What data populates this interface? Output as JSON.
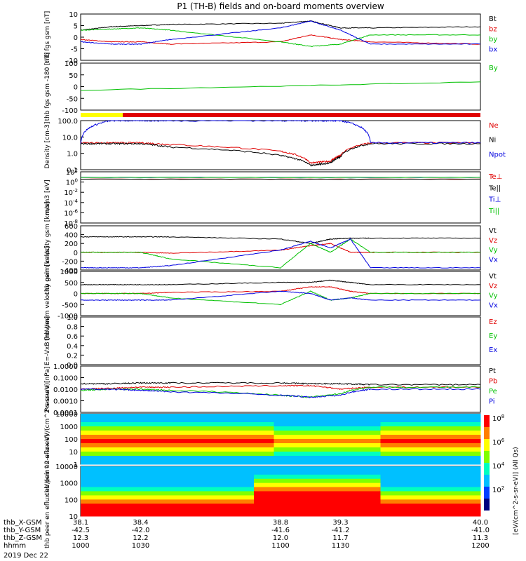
{
  "title": "P1 (TH-B) fields and on-board moments overview",
  "date": "2019 Dec 22",
  "colors": {
    "black": "#000000",
    "red": "#e00000",
    "green": "#00c000",
    "blue": "#0000e0",
    "yellow": "#ffff00"
  },
  "time_axis": {
    "rows": [
      {
        "label": "thb_X-GSM",
        "values": [
          "38.1",
          "38.4",
          "38.8",
          "39.3",
          "40.0"
        ]
      },
      {
        "label": "thb_Y-GSM",
        "values": [
          "-42.5",
          "-42.0",
          "-41.6",
          "-41.2",
          "-41.0"
        ]
      },
      {
        "label": "thb_Z-GSM",
        "values": [
          "12.3",
          "12.2",
          "12.0",
          "11.7",
          "11.3"
        ]
      },
      {
        "label": "hhmm",
        "values": [
          "1000",
          "1030",
          "1100",
          "1130",
          "1200"
        ]
      }
    ]
  },
  "chart_data": [
    {
      "id": "fgs",
      "type": "line",
      "ylabel": "thb fgs gsm [nT]",
      "ylim": [
        -10,
        10
      ],
      "ticks": [
        "10",
        "5",
        "0",
        "-5",
        "-10"
      ],
      "x": [
        1000,
        1015,
        1030,
        1045,
        1100,
        1115,
        1130,
        1145,
        1200
      ],
      "series": [
        {
          "name": "Bt",
          "color": "black",
          "values": [
            3,
            4.5,
            5,
            5.5,
            6,
            7,
            4,
            4,
            4.5
          ]
        },
        {
          "name": "bz",
          "color": "red",
          "values": [
            -1,
            -2,
            -2,
            -3,
            -2,
            1,
            -1,
            -2,
            -3
          ]
        },
        {
          "name": "by",
          "color": "green",
          "values": [
            3,
            3.5,
            4,
            3,
            -2,
            -4,
            -3,
            1,
            1
          ]
        },
        {
          "name": "bx",
          "color": "blue",
          "values": [
            -2,
            -3,
            -3,
            -1,
            4,
            7,
            3,
            -3,
            -3
          ]
        }
      ]
    },
    {
      "id": "fgs_rot",
      "type": "line",
      "ylabel": "thb fgs gsm -180 [nT]",
      "ylim": [
        -125,
        100
      ],
      "ticks": [
        "100",
        "50",
        "0",
        "-50",
        "-100"
      ],
      "x": [
        1000,
        1200
      ],
      "series": [
        {
          "name": "By",
          "color": "green",
          "values": [
            -30,
            10
          ]
        }
      ]
    },
    {
      "id": "density",
      "type": "line",
      "log": true,
      "ylabel": "Density [cm-3]",
      "ylim": [
        0.1,
        300
      ],
      "ticks": [
        "100.0",
        "10.0",
        "1.0",
        "0.1"
      ],
      "x": [
        1000,
        1015,
        1030,
        1045,
        1100,
        1115,
        1125,
        1130,
        1145,
        1200
      ],
      "series": [
        {
          "name": "Ne",
          "color": "red",
          "values": [
            8,
            8,
            8,
            6,
            2,
            0.3,
            0.4,
            1,
            8,
            8
          ]
        },
        {
          "name": "Ni",
          "color": "black",
          "values": [
            7,
            7,
            7,
            4,
            1,
            0.2,
            0.3,
            0.8,
            7,
            7
          ]
        },
        {
          "name": "Npot",
          "color": "blue",
          "values": [
            8,
            300,
            300,
            300,
            300,
            300,
            300,
            300,
            8,
            8
          ]
        }
      ]
    },
    {
      "id": "temps",
      "type": "line",
      "log": true,
      "ylabel": "mom3 [eV]",
      "ylim": [
        1e-10,
        10000.0
      ],
      "ticks": [
        "10^2",
        "10^0",
        "10^-2",
        "10^-4",
        "10^-6",
        "10^-8"
      ],
      "x": [
        1000,
        1200
      ],
      "series": [
        {
          "name": "Te⊥",
          "color": "red",
          "values": [
            100,
            100
          ]
        },
        {
          "name": "Te||",
          "color": "black",
          "values": [
            100,
            100
          ]
        },
        {
          "name": "Ti⊥",
          "color": "blue",
          "values": [
            300,
            300
          ]
        },
        {
          "name": "Ti||",
          "color": "green",
          "values": [
            300,
            300
          ]
        }
      ]
    },
    {
      "id": "peim",
      "type": "line",
      "ylabel": "thb peim velocity gsm [km/s]",
      "ylim": [
        -400,
        600
      ],
      "ticks": [
        "600",
        "400",
        "200",
        "0",
        "-200",
        "-400"
      ],
      "x": [
        1000,
        1015,
        1030,
        1045,
        1100,
        1115,
        1125,
        1135,
        1145,
        1200
      ],
      "series": [
        {
          "name": "Vt",
          "color": "black",
          "values": [
            350,
            350,
            350,
            350,
            300,
            200,
            300,
            320,
            320,
            320
          ]
        },
        {
          "name": "Vz",
          "color": "red",
          "values": [
            0,
            0,
            0,
            -20,
            50,
            150,
            200,
            0,
            0,
            0
          ]
        },
        {
          "name": "Vy",
          "color": "green",
          "values": [
            0,
            0,
            0,
            -150,
            -350,
            200,
            0,
            300,
            0,
            0
          ]
        },
        {
          "name": "Vx",
          "color": "blue",
          "values": [
            -350,
            -350,
            -350,
            -300,
            50,
            250,
            100,
            300,
            -350,
            -350
          ]
        }
      ]
    },
    {
      "id": "peem",
      "type": "line",
      "ylabel": "thb peem velocity gsm [km/s]",
      "ylim": [
        -1000,
        1000
      ],
      "ticks": [
        "1000",
        "500",
        "0",
        "-500",
        "-1000"
      ],
      "x": [
        1000,
        1015,
        1030,
        1045,
        1100,
        1115,
        1125,
        1135,
        1145,
        1200
      ],
      "series": [
        {
          "name": "Vt",
          "color": "black",
          "values": [
            400,
            400,
            400,
            400,
            500,
            500,
            600,
            500,
            400,
            400
          ]
        },
        {
          "name": "Vz",
          "color": "red",
          "values": [
            0,
            0,
            0,
            50,
            100,
            300,
            300,
            100,
            0,
            0
          ]
        },
        {
          "name": "Vy",
          "color": "green",
          "values": [
            0,
            0,
            0,
            -200,
            -500,
            100,
            -300,
            -200,
            0,
            0
          ]
        },
        {
          "name": "Vx",
          "color": "blue",
          "values": [
            -300,
            -300,
            -300,
            -300,
            100,
            0,
            -300,
            -200,
            -300,
            -300
          ]
        }
      ]
    },
    {
      "id": "efield",
      "type": "line",
      "ylabel": "E=-VxB [mV/m]",
      "ylim": [
        0,
        1.0
      ],
      "ticks": [
        "1.0",
        "0.8",
        "0.6",
        "0.4",
        "0.2",
        "0.0"
      ],
      "series": [
        {
          "name": "Ez",
          "color": "red"
        },
        {
          "name": "Ey",
          "color": "green"
        },
        {
          "name": "Ex",
          "color": "blue"
        }
      ]
    },
    {
      "id": "pressure",
      "type": "line",
      "log": true,
      "ylabel": "Pressure [nPa]",
      "ylim": [
        0.0001,
        1.0
      ],
      "ticks": [
        "1.0000",
        "0.1000",
        "0.0100",
        "0.0010",
        "0.0001"
      ],
      "x": [
        1000,
        1015,
        1030,
        1045,
        1100,
        1115,
        1130,
        1145,
        1200
      ],
      "series": [
        {
          "name": "Pt",
          "color": "black",
          "values": [
            0.03,
            0.03,
            0.035,
            0.035,
            0.035,
            0.03,
            0.03,
            0.025,
            0.025
          ]
        },
        {
          "name": "Pb",
          "color": "red",
          "values": [
            0.01,
            0.012,
            0.015,
            0.015,
            0.02,
            0.02,
            0.01,
            0.015,
            0.015
          ]
        },
        {
          "name": "Pe",
          "color": "green",
          "values": [
            0.008,
            0.01,
            0.01,
            0.008,
            0.003,
            0.002,
            0.004,
            0.015,
            0.015
          ]
        },
        {
          "name": "Pi",
          "color": "blue",
          "values": [
            0.01,
            0.01,
            0.008,
            0.006,
            0.003,
            0.002,
            0.003,
            0.01,
            0.01
          ]
        }
      ]
    },
    {
      "id": "peir",
      "type": "heatmap",
      "ylabel": "thb peir en eflux eV/(cm^2-s-sr-eV)",
      "log": true,
      "ylim": [
        1,
        10000
      ],
      "ticks": [
        "10000",
        "1000",
        "100",
        "10",
        "1"
      ]
    },
    {
      "id": "peer",
      "type": "heatmap",
      "ylabel": "thb peer en eflux eV/(cm^2-s-sr-eV)",
      "log": true,
      "ylim": [
        5,
        10000
      ],
      "ticks": [
        "10000",
        "1000",
        "100",
        "10"
      ]
    }
  ],
  "colorbar": {
    "label": "[eV/(cm^2-s-sr-eV)] (All Qs)",
    "ticks": [
      "10^8",
      "10^6",
      "10^4",
      "10^2"
    ]
  }
}
